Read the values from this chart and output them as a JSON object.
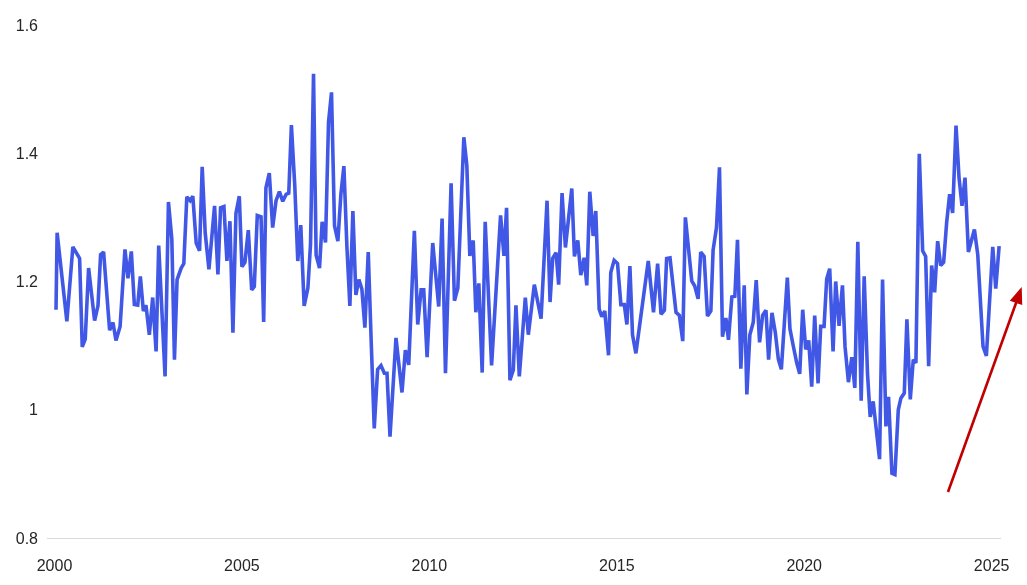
{
  "chart_data": {
    "type": "line",
    "color": "#4158e6",
    "x": [
      2000.04,
      2000.07,
      2000.33,
      2000.49,
      2000.67,
      2000.74,
      2000.82,
      2000.91,
      2001.07,
      2001.16,
      2001.23,
      2001.31,
      2001.47,
      2001.56,
      2001.64,
      2001.75,
      2001.88,
      2001.96,
      2002.05,
      2002.13,
      2002.22,
      2002.29,
      2002.37,
      2002.44,
      2002.53,
      2002.62,
      2002.71,
      2002.78,
      2002.95,
      2003.04,
      2003.13,
      2003.2,
      2003.27,
      2003.38,
      2003.45,
      2003.53,
      2003.62,
      2003.69,
      2003.78,
      2003.87,
      2003.94,
      2004.02,
      2004.12,
      2004.27,
      2004.36,
      2004.43,
      2004.52,
      2004.6,
      2004.68,
      2004.76,
      2004.84,
      2004.93,
      2005.0,
      2005.08,
      2005.17,
      2005.26,
      2005.33,
      2005.41,
      2005.51,
      2005.58,
      2005.64,
      2005.73,
      2005.82,
      2005.91,
      2006.0,
      2006.09,
      2006.18,
      2006.25,
      2006.32,
      2006.41,
      2006.49,
      2006.57,
      2006.66,
      2006.76,
      2006.83,
      2006.91,
      2006.98,
      2007.07,
      2007.14,
      2007.23,
      2007.31,
      2007.39,
      2007.47,
      2007.56,
      2007.64,
      2007.72,
      2007.8,
      2007.88,
      2007.96,
      2008.04,
      2008.12,
      2008.2,
      2008.28,
      2008.37,
      2008.45,
      2008.53,
      2008.62,
      2008.71,
      2008.8,
      2008.87,
      2008.95,
      2009.11,
      2009.27,
      2009.36,
      2009.45,
      2009.6,
      2009.69,
      2009.78,
      2009.85,
      2009.94,
      2010.09,
      2010.25,
      2010.34,
      2010.43,
      2010.58,
      2010.67,
      2010.76,
      2010.92,
      2011.0,
      2011.08,
      2011.17,
      2011.24,
      2011.32,
      2011.41,
      2011.49,
      2011.66,
      2011.9,
      2011.99,
      2012.06,
      2012.15,
      2012.24,
      2012.31,
      2012.4,
      2012.56,
      2012.64,
      2012.8,
      2012.98,
      2013.14,
      2013.22,
      2013.29,
      2013.38,
      2013.45,
      2013.54,
      2013.63,
      2013.8,
      2013.87,
      2013.96,
      2014.04,
      2014.13,
      2014.2,
      2014.28,
      2014.37,
      2014.44,
      2014.53,
      2014.6,
      2014.68,
      2014.78,
      2014.84,
      2014.93,
      2015.02,
      2015.11,
      2015.2,
      2015.27,
      2015.35,
      2015.42,
      2015.51,
      2015.84,
      2015.98,
      2016.09,
      2016.18,
      2016.27,
      2016.33,
      2016.42,
      2016.58,
      2016.67,
      2016.76,
      2016.83,
      2017.0,
      2017.08,
      2017.17,
      2017.24,
      2017.33,
      2017.42,
      2017.51,
      2017.57,
      2017.66,
      2017.74,
      2017.82,
      2017.91,
      2017.98,
      2018.07,
      2018.15,
      2018.22,
      2018.31,
      2018.4,
      2018.47,
      2018.55,
      2018.64,
      2018.72,
      2018.81,
      2018.89,
      2018.98,
      2019.05,
      2019.14,
      2019.23,
      2019.31,
      2019.39,
      2019.55,
      2019.62,
      2019.71,
      2019.8,
      2019.88,
      2019.96,
      2020.04,
      2020.12,
      2020.2,
      2020.28,
      2020.37,
      2020.44,
      2020.53,
      2020.6,
      2020.68,
      2020.77,
      2020.84,
      2020.93,
      2021.02,
      2021.09,
      2021.18,
      2021.27,
      2021.35,
      2021.43,
      2021.52,
      2021.6,
      2021.69,
      2021.76,
      2021.84,
      2022.01,
      2022.09,
      2022.18,
      2022.25,
      2022.34,
      2022.42,
      2022.51,
      2022.58,
      2022.67,
      2022.74,
      2022.83,
      2022.91,
      2022.98,
      2023.07,
      2023.16,
      2023.24,
      2023.32,
      2023.4,
      2023.48,
      2023.56,
      2023.64,
      2023.72,
      2023.8,
      2023.88,
      2023.96,
      2024.05,
      2024.13,
      2024.21,
      2024.29,
      2024.38,
      2024.54,
      2024.63,
      2024.77,
      2024.86,
      2025.03,
      2025.11,
      2025.2
    ],
    "values": [
      1.156,
      1.276,
      1.138,
      1.254,
      1.236,
      1.098,
      1.11,
      1.221,
      1.139,
      1.162,
      1.242,
      1.246,
      1.124,
      1.136,
      1.108,
      1.13,
      1.25,
      1.205,
      1.247,
      1.164,
      1.163,
      1.208,
      1.154,
      1.163,
      1.117,
      1.175,
      1.091,
      1.256,
      1.052,
      1.324,
      1.266,
      1.078,
      1.203,
      1.221,
      1.228,
      1.332,
      1.326,
      1.333,
      1.26,
      1.248,
      1.379,
      1.276,
      1.219,
      1.318,
      1.211,
      1.315,
      1.317,
      1.232,
      1.294,
      1.12,
      1.306,
      1.333,
      1.223,
      1.23,
      1.28,
      1.187,
      1.192,
      1.303,
      1.301,
      1.137,
      1.346,
      1.369,
      1.284,
      1.326,
      1.34,
      1.325,
      1.336,
      1.338,
      1.444,
      1.349,
      1.232,
      1.288,
      1.162,
      1.19,
      1.258,
      1.524,
      1.241,
      1.221,
      1.293,
      1.261,
      1.448,
      1.495,
      1.287,
      1.263,
      1.336,
      1.38,
      1.255,
      1.162,
      1.31,
      1.179,
      1.203,
      1.188,
      1.128,
      1.246,
      1.104,
      0.971,
      1.063,
      1.069,
      1.057,
      1.057,
      0.958,
      1.112,
      1.027,
      1.093,
      1.07,
      1.279,
      1.133,
      1.187,
      1.187,
      1.082,
      1.26,
      1.161,
      1.298,
      1.057,
      1.353,
      1.17,
      1.19,
      1.425,
      1.381,
      1.24,
      1.264,
      1.152,
      1.197,
      1.058,
      1.293,
      1.069,
      1.303,
      1.24,
      1.315,
      1.046,
      1.062,
      1.163,
      1.052,
      1.175,
      1.117,
      1.195,
      1.142,
      1.326,
      1.168,
      1.236,
      1.245,
      1.195,
      1.338,
      1.253,
      1.345,
      1.239,
      1.264,
      1.21,
      1.237,
      1.194,
      1.34,
      1.271,
      1.31,
      1.157,
      1.145,
      1.154,
      1.085,
      1.214,
      1.233,
      1.228,
      1.164,
      1.164,
      1.133,
      1.224,
      1.117,
      1.088,
      1.232,
      1.152,
      1.228,
      1.149,
      1.155,
      1.236,
      1.237,
      1.152,
      1.147,
      1.107,
      1.3,
      1.201,
      1.193,
      1.173,
      1.246,
      1.239,
      1.146,
      1.154,
      1.249,
      1.284,
      1.378,
      1.114,
      1.143,
      1.109,
      1.176,
      1.177,
      1.265,
      1.064,
      1.194,
      1.024,
      1.117,
      1.136,
      1.202,
      1.105,
      1.147,
      1.155,
      1.078,
      1.151,
      1.12,
      1.079,
      1.063,
      1.206,
      1.126,
      1.099,
      1.073,
      1.056,
      1.156,
      1.094,
      1.108,
      1.036,
      1.147,
      1.041,
      1.13,
      1.13,
      1.204,
      1.22,
      1.091,
      1.2,
      1.131,
      1.194,
      1.098,
      1.043,
      1.082,
      1.034,
      1.262,
      1.014,
      1.208,
      1.055,
      0.989,
      1.013,
      0.923,
      1.203,
      0.974,
      1.02,
      0.901,
      0.899,
      1.0,
      1.018,
      1.026,
      1.141,
      1.016,
      1.078,
      1.073,
      1.399,
      1.248,
      1.239,
      1.068,
      1.225,
      1.183,
      1.263,
      1.225,
      1.23,
      1.292,
      1.336,
      1.307,
      1.443,
      1.362,
      1.318,
      1.362,
      1.246,
      1.281,
      1.242,
      1.099,
      1.084,
      1.254,
      1.189,
      1.255
    ],
    "xlim": [
      1999.8,
      2025.25
    ],
    "xticks": [
      2000,
      2005,
      2010,
      2015,
      2020,
      2025
    ],
    "ylim": [
      0.8,
      1.6
    ],
    "yticks": [
      0.8,
      1,
      1.2,
      1.4,
      1.6
    ]
  }
}
